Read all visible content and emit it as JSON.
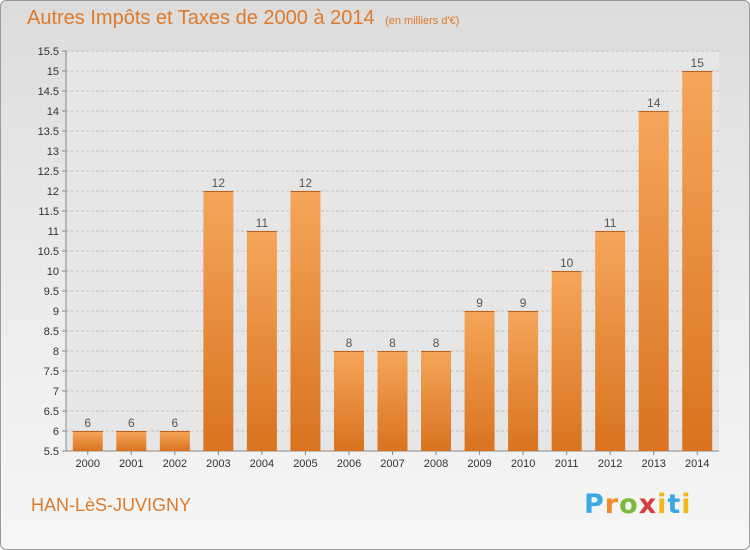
{
  "header": {
    "title": "Autres Impôts et Taxes de 2000 à 2014",
    "subtitle": "(en milliers d'€)"
  },
  "footer": {
    "commune": "HAN-LèS-JUVIGNY",
    "logo_text": "Proxiti"
  },
  "colors": {
    "bar_top": "#f5a65a",
    "bar_bottom": "#d9731f",
    "title": "#e07a2a",
    "value_label": "#555555"
  },
  "chart_data": {
    "type": "bar",
    "title": "Autres Impôts et Taxes de 2000 à 2014",
    "subtitle": "(en milliers d'€)",
    "categories": [
      "2000",
      "2001",
      "2002",
      "2003",
      "2004",
      "2005",
      "2006",
      "2007",
      "2008",
      "2009",
      "2010",
      "2011",
      "2012",
      "2013",
      "2014"
    ],
    "values": [
      6,
      6,
      6,
      12,
      11,
      12,
      8,
      8,
      8,
      9,
      9,
      10,
      11,
      14,
      15
    ],
    "data_labels": [
      "6",
      "6",
      "6",
      "12",
      "11",
      "12",
      "8",
      "8",
      "8",
      "9",
      "9",
      "10",
      "11",
      "14",
      "15"
    ],
    "ylim": [
      5.5,
      15.5
    ],
    "yticks": [
      "5.5",
      "6",
      "6.5",
      "7",
      "7.5",
      "8",
      "8.5",
      "9",
      "9.5",
      "10",
      "10.5",
      "11",
      "11.5",
      "12",
      "12.5",
      "13",
      "13.5",
      "14",
      "14.5",
      "15",
      "15.5"
    ],
    "grid": true,
    "xlabel": "",
    "ylabel": ""
  }
}
